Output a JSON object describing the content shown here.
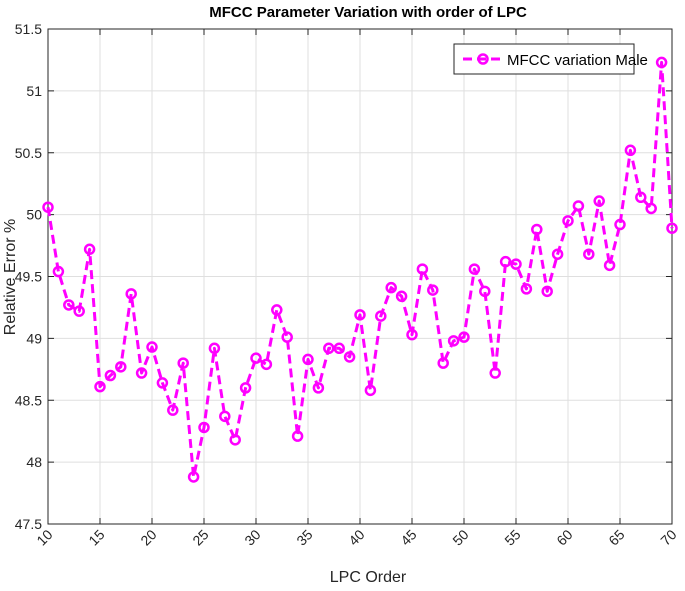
{
  "chart_data": {
    "type": "line",
    "title": "MFCC Parameter Variation with order of LPC",
    "xlabel": "LPC Order",
    "ylabel": "Relative Error %",
    "xlim": [
      10,
      70
    ],
    "ylim": [
      47.5,
      51.5
    ],
    "xticks": [
      10,
      15,
      20,
      25,
      30,
      35,
      40,
      45,
      50,
      55,
      60,
      65,
      70
    ],
    "yticks": [
      47.5,
      48,
      48.5,
      49,
      49.5,
      50,
      50.5,
      51,
      51.5
    ],
    "grid": true,
    "legend_position": "top-right",
    "series": [
      {
        "name": "MFCC variation Male",
        "color": "#ff00ff",
        "marker": "circle",
        "line_style": "dashed",
        "x": [
          10,
          11,
          12,
          13,
          14,
          15,
          16,
          17,
          18,
          19,
          20,
          21,
          22,
          23,
          24,
          25,
          26,
          27,
          28,
          29,
          30,
          31,
          32,
          33,
          34,
          35,
          36,
          37,
          38,
          39,
          40,
          41,
          42,
          43,
          44,
          45,
          46,
          47,
          48,
          49,
          50,
          51,
          52,
          53,
          54,
          55,
          56,
          57,
          58,
          59,
          60,
          61,
          62,
          63,
          64,
          65,
          66,
          67,
          68,
          69,
          70
        ],
        "y": [
          50.06,
          49.54,
          49.27,
          49.22,
          49.72,
          48.61,
          48.7,
          48.77,
          49.36,
          48.72,
          48.93,
          48.64,
          48.42,
          48.8,
          47.88,
          48.28,
          48.92,
          48.37,
          48.18,
          48.6,
          48.84,
          48.79,
          49.23,
          49.01,
          48.21,
          48.83,
          48.6,
          48.92,
          48.92,
          48.85,
          49.19,
          48.58,
          49.18,
          49.41,
          49.34,
          49.03,
          49.56,
          49.39,
          48.8,
          48.98,
          49.01,
          49.56,
          49.38,
          48.72,
          49.62,
          49.6,
          49.4,
          49.88,
          49.38,
          49.68,
          49.95,
          50.07,
          49.68,
          50.11,
          49.59,
          49.92,
          50.52,
          50.14,
          50.05,
          51.23,
          49.89
        ]
      }
    ]
  }
}
